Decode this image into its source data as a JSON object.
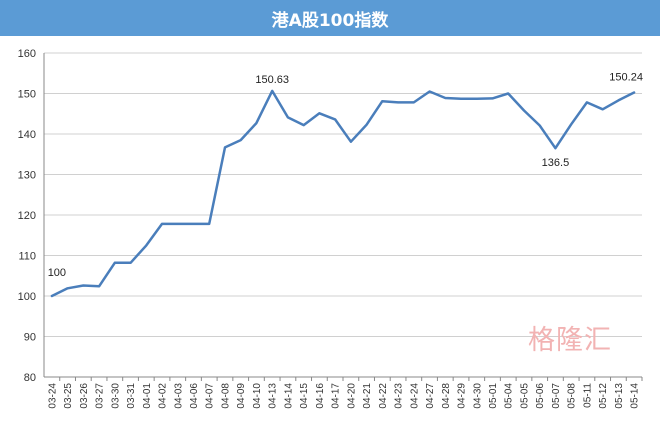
{
  "chart_data": {
    "type": "line",
    "title": "港A股100指数",
    "xlabel": "",
    "ylabel": "",
    "ylim": [
      80,
      160
    ],
    "yticks": [
      80,
      90,
      100,
      110,
      120,
      130,
      140,
      150,
      160
    ],
    "grid": true,
    "legend": "none",
    "line_color": "#4a7ebb",
    "categories": [
      "03-24",
      "03-25",
      "03-26",
      "03-27",
      "03-30",
      "03-31",
      "04-01",
      "04-02",
      "04-03",
      "04-06",
      "04-07",
      "04-08",
      "04-09",
      "04-10",
      "04-13",
      "04-14",
      "04-15",
      "04-16",
      "04-17",
      "04-20",
      "04-21",
      "04-22",
      "04-23",
      "04-24",
      "04-27",
      "04-28",
      "04-29",
      "04-30",
      "05-01",
      "05-04",
      "05-05",
      "05-06",
      "05-07",
      "05-08",
      "05-11",
      "05-12",
      "05-13",
      "05-14"
    ],
    "series": [
      {
        "values": [
          100,
          101.9,
          102.6,
          102.4,
          108.2,
          108.2,
          112.5,
          117.8,
          117.8,
          117.8,
          117.8,
          136.7,
          138.5,
          142.7,
          150.63,
          144.1,
          142.2,
          145.1,
          143.6,
          138.1,
          142.3,
          148.1,
          147.8,
          147.8,
          150.5,
          148.9,
          148.7,
          148.7,
          148.8,
          150.0,
          145.8,
          142.1,
          136.5,
          142.4,
          147.8,
          146.1,
          148.3,
          150.24
        ]
      }
    ],
    "annotations": [
      {
        "index": 0,
        "text": "100"
      },
      {
        "index": 14,
        "text": "150.63"
      },
      {
        "index": 32,
        "text": "136.5"
      },
      {
        "index": 37,
        "text": "150.24"
      }
    ]
  },
  "watermark": "格隆汇"
}
